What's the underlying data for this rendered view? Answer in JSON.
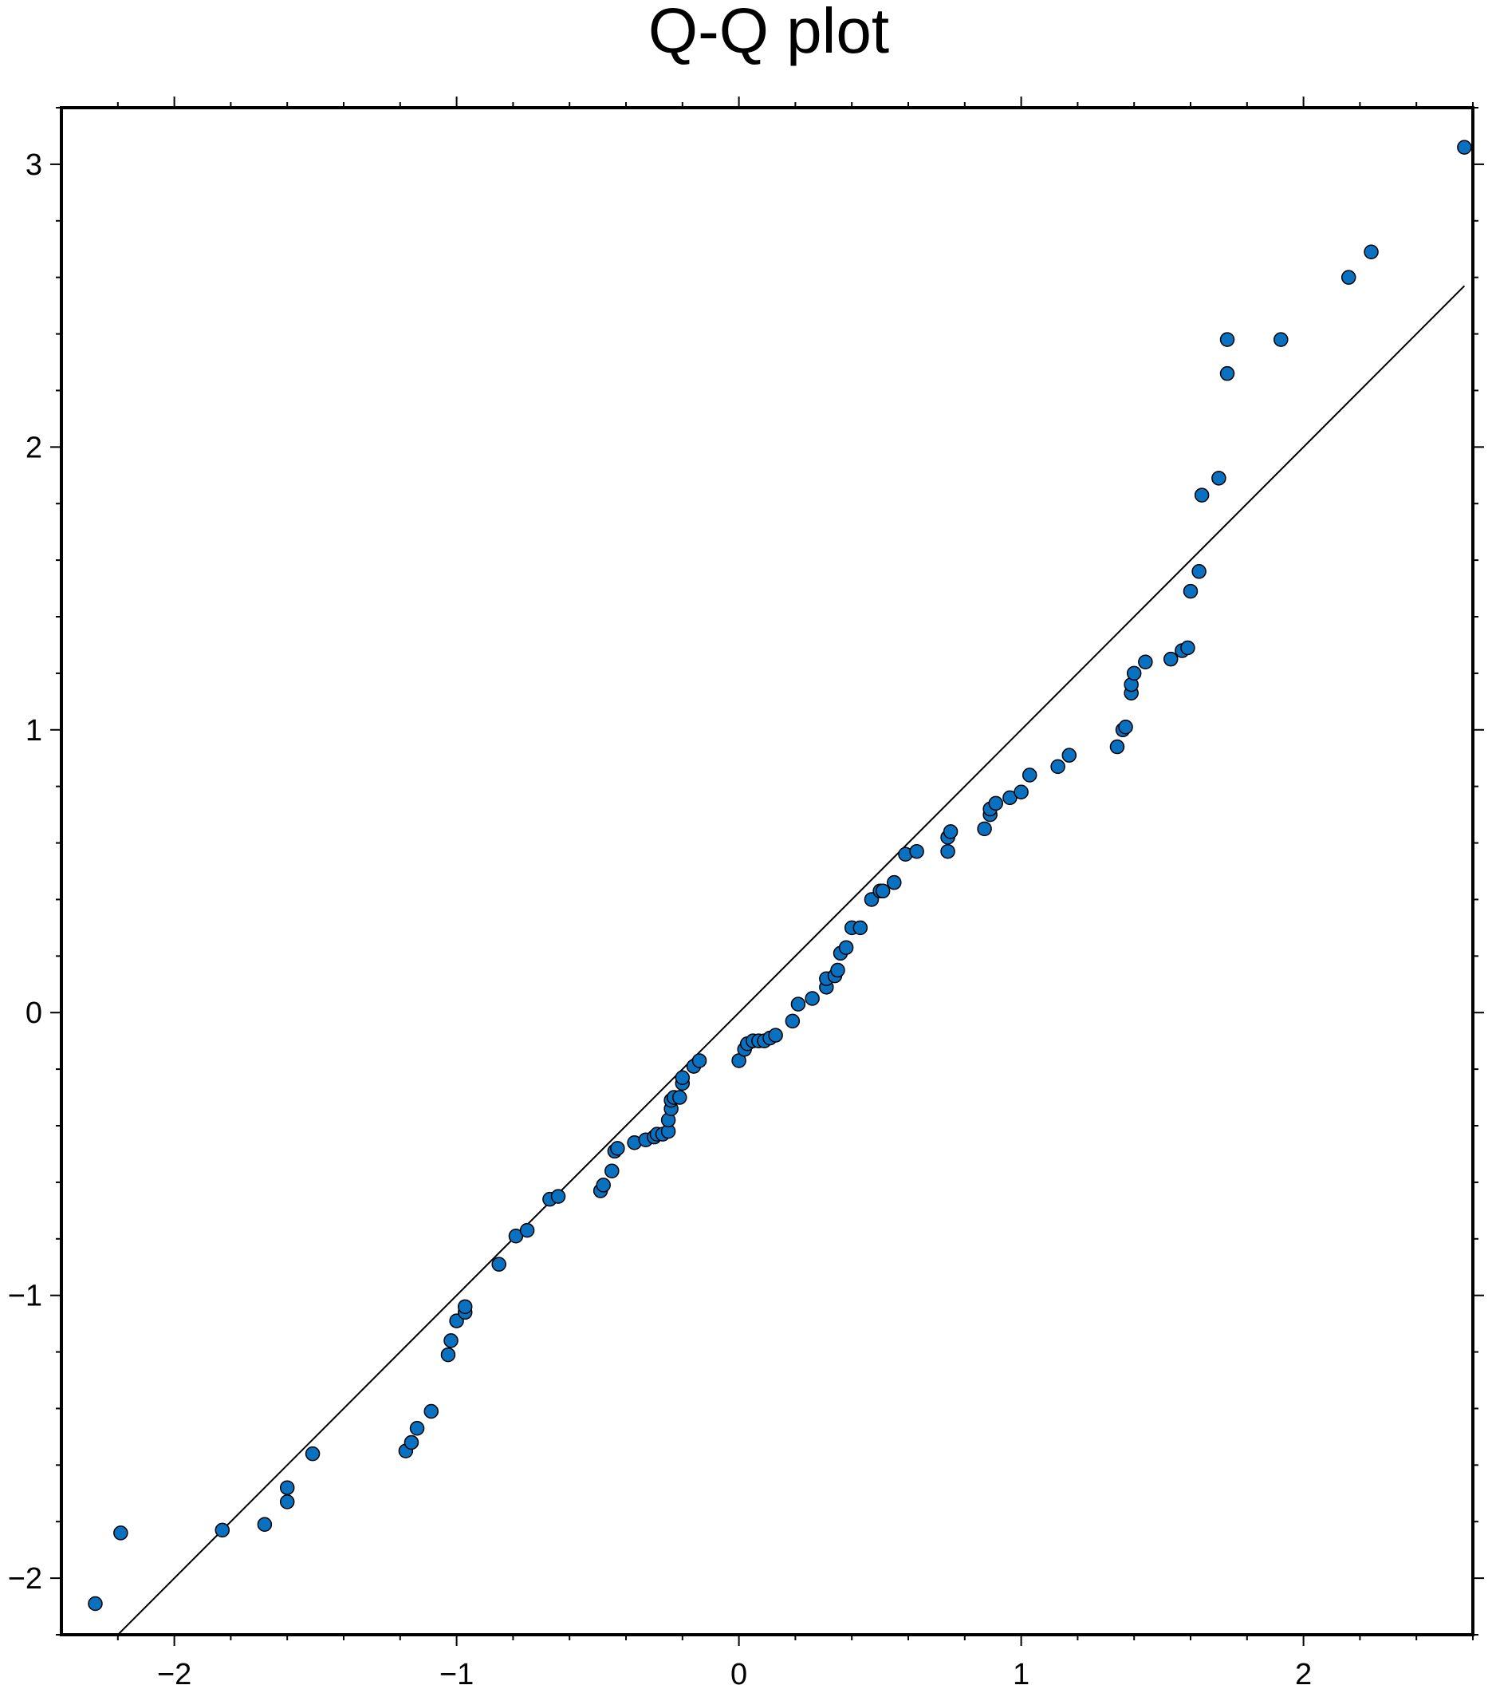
{
  "chart_data": {
    "type": "scatter",
    "title": "Q-Q plot",
    "xlabel": "",
    "ylabel": "",
    "xlim": [
      -2.4,
      2.6
    ],
    "ylim": [
      -2.2,
      3.2
    ],
    "x_ticks": [
      -2,
      -1,
      0,
      1,
      2
    ],
    "x_tick_labels": [
      "−2",
      "−1",
      "0",
      "1",
      "2"
    ],
    "y_ticks": [
      -2,
      -1,
      0,
      1,
      2,
      3
    ],
    "y_tick_labels": [
      "−2",
      "−1",
      "0",
      "1",
      "2",
      "3"
    ],
    "minor_tick_step": 0.2,
    "grid": false,
    "marker_color": "#0a70c0",
    "reference_line": {
      "slope": 1,
      "intercept": 0,
      "x_range": [
        -2.28,
        2.57
      ],
      "color": "#000000"
    },
    "points": {
      "x": [
        -2.28,
        -2.19,
        -1.83,
        -1.68,
        -1.6,
        -1.6,
        -1.51,
        -1.18,
        -1.16,
        -1.14,
        -1.09,
        -1.03,
        -1.02,
        -1.0,
        -0.97,
        -0.97,
        -0.85,
        -0.79,
        -0.75,
        -0.67,
        -0.64,
        -0.49,
        -0.48,
        -0.45,
        -0.44,
        -0.43,
        -0.37,
        -0.33,
        -0.3,
        -0.29,
        -0.27,
        -0.25,
        -0.25,
        -0.24,
        -0.24,
        -0.23,
        -0.21,
        -0.2,
        -0.2,
        -0.16,
        -0.14,
        0.0,
        0.02,
        0.03,
        0.05,
        0.07,
        0.09,
        0.11,
        0.13,
        0.19,
        0.21,
        0.26,
        0.31,
        0.31,
        0.34,
        0.35,
        0.36,
        0.38,
        0.4,
        0.43,
        0.47,
        0.5,
        0.51,
        0.55,
        0.59,
        0.63,
        0.74,
        0.74,
        0.75,
        0.87,
        0.89,
        0.89,
        0.91,
        0.96,
        1.0,
        1.03,
        1.13,
        1.17,
        1.34,
        1.36,
        1.37,
        1.39,
        1.39,
        1.4,
        1.44,
        1.53,
        1.57,
        1.59,
        1.6,
        1.63,
        1.64,
        1.7,
        1.73,
        1.73,
        1.92,
        2.16,
        2.24,
        2.57
      ],
      "y": [
        -2.09,
        -1.84,
        -1.83,
        -1.81,
        -1.68,
        -1.73,
        -1.56,
        -1.55,
        -1.52,
        -1.47,
        -1.41,
        -1.21,
        -1.16,
        -1.09,
        -1.06,
        -1.04,
        -0.89,
        -0.79,
        -0.77,
        -0.66,
        -0.65,
        -0.63,
        -0.61,
        -0.56,
        -0.49,
        -0.48,
        -0.46,
        -0.45,
        -0.44,
        -0.43,
        -0.43,
        -0.42,
        -0.38,
        -0.34,
        -0.31,
        -0.3,
        -0.3,
        -0.25,
        -0.23,
        -0.19,
        -0.17,
        -0.17,
        -0.13,
        -0.11,
        -0.1,
        -0.1,
        -0.1,
        -0.09,
        -0.08,
        -0.03,
        0.03,
        0.05,
        0.09,
        0.12,
        0.13,
        0.15,
        0.21,
        0.23,
        0.3,
        0.3,
        0.4,
        0.43,
        0.43,
        0.46,
        0.56,
        0.57,
        0.57,
        0.62,
        0.64,
        0.65,
        0.7,
        0.72,
        0.74,
        0.76,
        0.78,
        0.84,
        0.87,
        0.91,
        0.94,
        1.0,
        1.01,
        1.13,
        1.16,
        1.2,
        1.24,
        1.25,
        1.28,
        1.29,
        1.49,
        1.56,
        1.83,
        1.89,
        2.26,
        2.38,
        2.38,
        2.6,
        2.69,
        3.06
      ]
    }
  }
}
